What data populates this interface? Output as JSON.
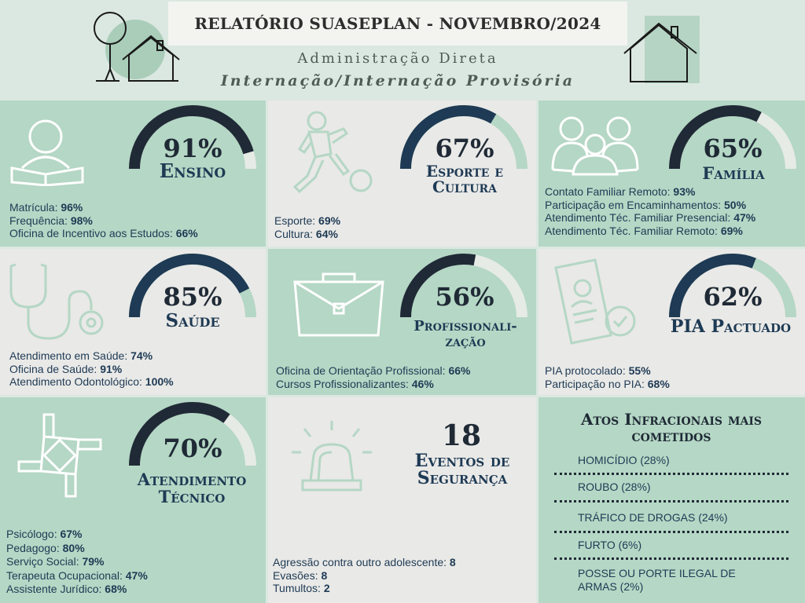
{
  "header": {
    "title": "RELATÓRIO SUASEPLAN - NOVEMBRO/2024",
    "subtitle1": "Administração Direta",
    "subtitle2": "Internação/Internação Provisória"
  },
  "cards": [
    {
      "percent": "91%",
      "value": 91,
      "category": "Ensino",
      "icon": "reading-person-icon",
      "items": [
        {
          "label": "Matrícula: ",
          "value": "96%"
        },
        {
          "label": "Frequência: ",
          "value": "98%"
        },
        {
          "label": "Oficina de Incentivo aos Estudos: ",
          "value": "66%"
        }
      ]
    },
    {
      "percent": "67%",
      "value": 67,
      "category": "Esporte e Cultura",
      "icon": "soccer-player-icon",
      "items": [
        {
          "label": "Esporte: ",
          "value": "69%"
        },
        {
          "label": "Cultura: ",
          "value": "64%"
        }
      ]
    },
    {
      "percent": "65%",
      "value": 65,
      "category": "Família",
      "icon": "family-icon",
      "items": [
        {
          "label": "Contato Familiar Remoto: ",
          "value": "93%"
        },
        {
          "label": "Participação em Encaminhamentos: ",
          "value": "50%"
        },
        {
          "label": "Atendimento Téc. Familiar Presencial: ",
          "value": "47%"
        },
        {
          "label": "Atendimento Téc. Familiar Remoto: ",
          "value": "69%"
        }
      ]
    },
    {
      "percent": "85%",
      "value": 85,
      "category": "Saúde",
      "icon": "stethoscope-icon",
      "items": [
        {
          "label": "Atendimento em Saúde: ",
          "value": "74%"
        },
        {
          "label": "Oficina de Saúde: ",
          "value": "91%"
        },
        {
          "label": "Atendimento Odontológico: ",
          "value": "100%"
        }
      ]
    },
    {
      "percent": "56%",
      "value": 56,
      "category_line1": "Profissionali-",
      "category_line2": "zação",
      "icon": "briefcase-icon",
      "items": [
        {
          "label": "Oficina de Orientação Profissional: ",
          "value": "66%"
        },
        {
          "label": "Cursos Profissionalizantes: ",
          "value": "46%"
        }
      ]
    },
    {
      "percent": "62%",
      "value": 62,
      "category": "PIA Pactuado",
      "icon": "document-approved-icon",
      "items": [
        {
          "label": "PIA protocolado: ",
          "value": "55%"
        },
        {
          "label": "Participação no PIA: ",
          "value": "68%"
        }
      ]
    },
    {
      "percent": "70%",
      "value": 70,
      "category_line1": "Atendimento",
      "category_line2": "Técnico",
      "icon": "joined-hands-icon",
      "items": [
        {
          "label": "Psicólogo: ",
          "value": "67%"
        },
        {
          "label": "Pedagogo: ",
          "value": "80%"
        },
        {
          "label": "Serviço Social: ",
          "value": "79%"
        },
        {
          "label": "Terapeuta Ocupacional: ",
          "value": "47%"
        },
        {
          "label": "Assistente Jurídico: ",
          "value": "68%"
        }
      ]
    }
  ],
  "security": {
    "count": "18",
    "label_line1": "Eventos de",
    "label_line2": "Segurança",
    "icon": "alarm-siren-icon",
    "items": [
      {
        "label": "Agressão contra outro adolescente: ",
        "value": "8"
      },
      {
        "label": "Evasões: ",
        "value": "8"
      },
      {
        "label": "Tumultos: ",
        "value": "2"
      }
    ]
  },
  "atos": {
    "title_line1": "Atos Infracionais mais",
    "title_line2": "cometidos",
    "items": [
      "HOMICÍDIO (28%)",
      "ROUBO (28%)",
      "TRÁFICO DE DROGAS (24%)",
      "FURTO (6%)",
      "POSSE OU PORTE ILEGAL DE ARMAS (2%)"
    ]
  },
  "colors": {
    "dark": "#1f2a36",
    "navy": "#1e3a54",
    "green": "#b5d7c5",
    "grey": "#e9e9e7",
    "light": "#dbe8e1"
  }
}
